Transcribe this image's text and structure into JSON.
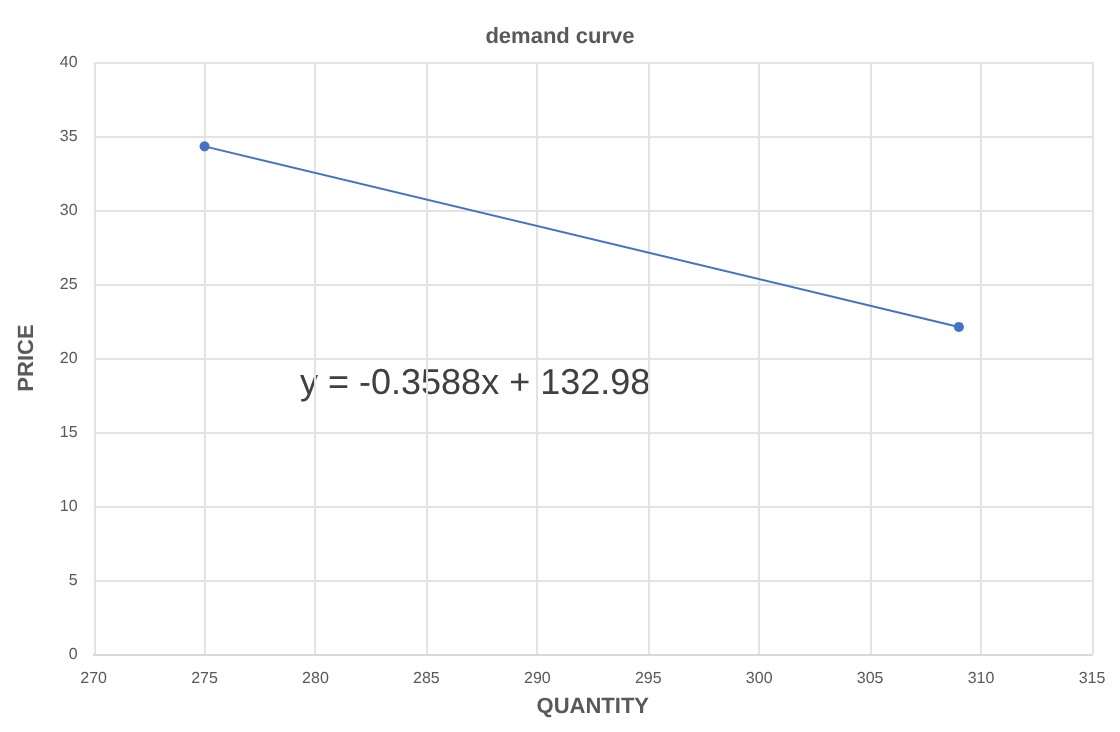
{
  "chart_data": {
    "type": "line",
    "title": "demand curve",
    "xlabel": "QUANTITY",
    "ylabel": "PRICE",
    "annotations": [
      "y = -0.3588x + 132.98"
    ],
    "series": [
      {
        "color": "#4472c4",
        "x": [
          275,
          309
        ],
        "values": [
          34.3,
          22.1
        ]
      }
    ],
    "xlim": [
      270,
      315
    ],
    "xticks": [
      270,
      275,
      280,
      285,
      290,
      295,
      300,
      305,
      310,
      315
    ],
    "ylim": [
      0,
      40
    ],
    "yticks": [
      0,
      5,
      10,
      15,
      20,
      25,
      30,
      35,
      40
    ],
    "grid": true,
    "marker": "circle",
    "line_style": "solid"
  }
}
